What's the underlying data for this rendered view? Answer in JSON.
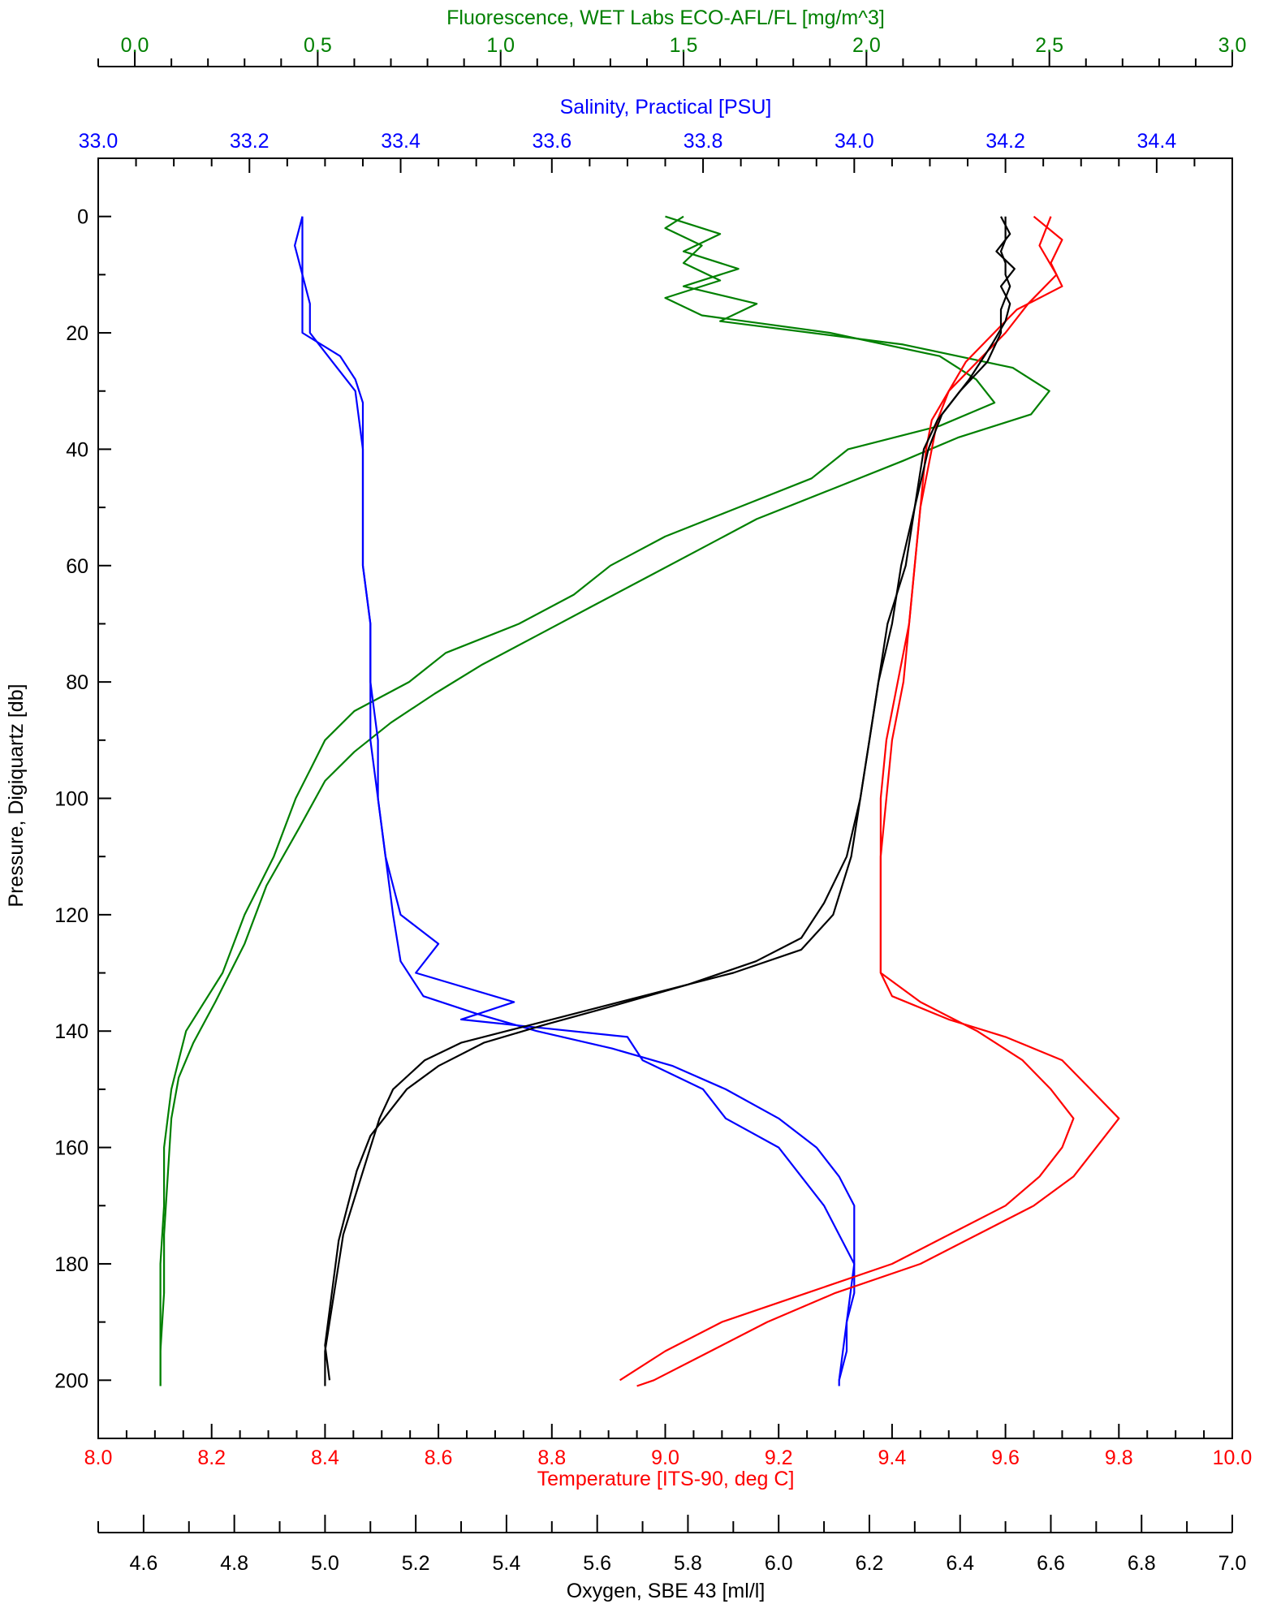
{
  "chart_data": {
    "type": "line",
    "colors": {
      "fluorescence": "#008000",
      "salinity": "#0000ff",
      "temperature": "#ff0000",
      "oxygen": "#000000",
      "frame": "#000000"
    },
    "axes": {
      "pressure": {
        "label": "Pressure, Digiquartz [db]",
        "range": [
          -10,
          210
        ],
        "ticks": [
          0,
          20,
          40,
          60,
          80,
          100,
          120,
          140,
          160,
          180,
          200
        ],
        "tick_labels": [
          "0",
          "20",
          "40",
          "60",
          "80",
          "100",
          "120",
          "140",
          "160",
          "180",
          "200"
        ],
        "reversed": true
      },
      "fluorescence": {
        "label": "Fluorescence, WET Labs ECO-AFL/FL [mg/m^3]",
        "range": [
          -0.1,
          3.0
        ],
        "ticks": [
          0.0,
          0.5,
          1.0,
          1.5,
          2.0,
          2.5,
          3.0
        ],
        "tick_labels": [
          "0.0",
          "0.5",
          "1.0",
          "1.5",
          "2.0",
          "2.5",
          "3.0"
        ],
        "position": "top-outer"
      },
      "salinity": {
        "label": "Salinity, Practical [PSU]",
        "range": [
          33.0,
          34.5
        ],
        "ticks": [
          33.0,
          33.2,
          33.4,
          33.6,
          33.8,
          34.0,
          34.2,
          34.4
        ],
        "tick_labels": [
          "33.0",
          "33.2",
          "33.4",
          "33.6",
          "33.8",
          "34.0",
          "34.2",
          "34.4"
        ],
        "position": "top-inner"
      },
      "temperature": {
        "label": "Temperature [ITS-90, deg C]",
        "range": [
          8.0,
          10.0
        ],
        "ticks": [
          8.0,
          8.2,
          8.4,
          8.6,
          8.8,
          9.0,
          9.2,
          9.4,
          9.6,
          9.8,
          10.0
        ],
        "tick_labels": [
          "8.0",
          "8.2",
          "8.4",
          "8.6",
          "8.8",
          "9.0",
          "9.2",
          "9.4",
          "9.6",
          "9.8",
          "10.0"
        ],
        "position": "bottom-inner"
      },
      "oxygen": {
        "label": "Oxygen, SBE 43 [ml/l]",
        "range": [
          4.5,
          7.0
        ],
        "ticks": [
          4.6,
          4.8,
          5.0,
          5.2,
          5.4,
          5.6,
          5.8,
          6.0,
          6.2,
          6.4,
          6.6,
          6.8,
          7.0
        ],
        "tick_labels": [
          "4.6",
          "4.8",
          "5.0",
          "5.2",
          "5.4",
          "5.6",
          "5.8",
          "6.0",
          "6.2",
          "6.4",
          "6.6",
          "6.8",
          "7.0"
        ],
        "position": "bottom-outer"
      }
    },
    "series": [
      {
        "key": "fluorescence",
        "axis": "fluorescence",
        "profiles": [
          {
            "pressure": [
              0,
              2,
              5,
              8,
              11,
              14,
              17,
              20,
              24,
              28,
              32,
              36,
              40,
              45,
              50,
              55,
              60,
              65,
              70,
              75,
              80,
              85,
              90,
              95,
              100,
              110,
              120,
              130,
              140,
              145,
              150,
              160,
              170,
              180,
              190,
              200,
              201
            ],
            "values": [
              1.5,
              1.45,
              1.55,
              1.5,
              1.6,
              1.45,
              1.55,
              1.9,
              2.2,
              2.3,
              2.35,
              2.2,
              1.95,
              1.85,
              1.65,
              1.45,
              1.3,
              1.2,
              1.05,
              0.85,
              0.75,
              0.6,
              0.52,
              0.48,
              0.44,
              0.38,
              0.3,
              0.24,
              0.14,
              0.12,
              0.1,
              0.08,
              0.08,
              0.07,
              0.07,
              0.07,
              0.07
            ]
          },
          {
            "pressure": [
              0,
              3,
              6,
              9,
              12,
              15,
              18,
              22,
              26,
              30,
              34,
              38,
              42,
              47,
              52,
              57,
              62,
              67,
              72,
              77,
              82,
              87,
              92,
              97,
              105,
              115,
              125,
              135,
              142,
              148,
              155,
              165,
              175,
              185,
              195,
              201
            ],
            "values": [
              1.45,
              1.6,
              1.5,
              1.65,
              1.5,
              1.7,
              1.6,
              2.1,
              2.4,
              2.5,
              2.45,
              2.25,
              2.1,
              1.9,
              1.7,
              1.55,
              1.4,
              1.25,
              1.1,
              0.95,
              0.82,
              0.7,
              0.6,
              0.52,
              0.45,
              0.36,
              0.3,
              0.22,
              0.16,
              0.12,
              0.1,
              0.09,
              0.08,
              0.08,
              0.07,
              0.07
            ]
          }
        ]
      },
      {
        "key": "salinity",
        "axis": "salinity",
        "profiles": [
          {
            "pressure": [
              0,
              4,
              8,
              12,
              16,
              20,
              24,
              28,
              32,
              40,
              50,
              60,
              70,
              80,
              90,
              100,
              110,
              120,
              128,
              134,
              137,
              140,
              143,
              146,
              150,
              155,
              160,
              165,
              170,
              175,
              180,
              185,
              190,
              195,
              200,
              201
            ],
            "values": [
              33.27,
              33.27,
              33.27,
              33.27,
              33.27,
              33.27,
              33.32,
              33.34,
              33.35,
              33.35,
              33.35,
              33.35,
              33.36,
              33.36,
              33.37,
              33.37,
              33.38,
              33.39,
              33.4,
              33.43,
              33.5,
              33.58,
              33.68,
              33.76,
              33.83,
              33.9,
              33.95,
              33.98,
              34.0,
              34.0,
              34.0,
              34.0,
              33.99,
              33.99,
              33.98,
              33.98
            ]
          },
          {
            "pressure": [
              0,
              5,
              10,
              15,
              20,
              25,
              30,
              40,
              50,
              60,
              70,
              80,
              90,
              100,
              110,
              120,
              125,
              130,
              135,
              138,
              141,
              145,
              150,
              155,
              160,
              170,
              180,
              190,
              200
            ],
            "values": [
              33.27,
              33.26,
              33.27,
              33.28,
              33.28,
              33.31,
              33.34,
              33.35,
              33.35,
              33.35,
              33.36,
              33.36,
              33.36,
              33.37,
              33.38,
              33.4,
              33.45,
              33.42,
              33.55,
              33.48,
              33.7,
              33.72,
              33.8,
              33.83,
              33.9,
              33.96,
              34.0,
              33.99,
              33.98
            ]
          }
        ]
      },
      {
        "key": "temperature",
        "axis": "temperature",
        "profiles": [
          {
            "pressure": [
              0,
              4,
              8,
              12,
              16,
              20,
              25,
              30,
              35,
              40,
              50,
              60,
              70,
              80,
              90,
              100,
              110,
              120,
              130,
              134,
              138,
              141,
              145,
              150,
              155,
              160,
              165,
              170,
              175,
              180,
              185,
              190,
              195,
              200,
              201
            ],
            "values": [
              9.65,
              9.7,
              9.68,
              9.7,
              9.62,
              9.58,
              9.53,
              9.5,
              9.47,
              9.46,
              9.45,
              9.44,
              9.43,
              9.42,
              9.4,
              9.39,
              9.38,
              9.38,
              9.38,
              9.4,
              9.5,
              9.6,
              9.7,
              9.75,
              9.8,
              9.76,
              9.72,
              9.65,
              9.55,
              9.45,
              9.3,
              9.18,
              9.08,
              8.98,
              8.95
            ]
          },
          {
            "pressure": [
              0,
              5,
              10,
              15,
              20,
              25,
              30,
              35,
              40,
              50,
              60,
              70,
              80,
              90,
              100,
              110,
              120,
              130,
              135,
              140,
              145,
              150,
              155,
              160,
              165,
              170,
              175,
              180,
              185,
              190,
              195,
              200
            ],
            "values": [
              9.68,
              9.66,
              9.69,
              9.64,
              9.6,
              9.55,
              9.5,
              9.48,
              9.47,
              9.45,
              9.44,
              9.43,
              9.41,
              9.39,
              9.38,
              9.38,
              9.38,
              9.38,
              9.45,
              9.55,
              9.63,
              9.68,
              9.72,
              9.7,
              9.66,
              9.6,
              9.5,
              9.4,
              9.25,
              9.1,
              9.0,
              8.92
            ]
          }
        ]
      },
      {
        "key": "oxygen",
        "axis": "oxygen",
        "profiles": [
          {
            "pressure": [
              0,
              2,
              4,
              6,
              8,
              10,
              12,
              14,
              16,
              20,
              25,
              30,
              35,
              40,
              50,
              60,
              70,
              80,
              90,
              100,
              110,
              120,
              126,
              130,
              134,
              138,
              140,
              142,
              145,
              150,
              155,
              160,
              165,
              170,
              175,
              180,
              185,
              190,
              195,
              200,
              201
            ],
            "values": [
              6.5,
              6.5,
              6.5,
              6.49,
              6.5,
              6.5,
              6.51,
              6.5,
              6.49,
              6.49,
              6.46,
              6.4,
              6.35,
              6.32,
              6.3,
              6.28,
              6.24,
              6.22,
              6.2,
              6.18,
              6.16,
              6.12,
              6.05,
              5.9,
              5.7,
              5.5,
              5.4,
              5.3,
              5.22,
              5.15,
              5.12,
              5.1,
              5.08,
              5.06,
              5.04,
              5.03,
              5.02,
              5.01,
              5.0,
              5.0,
              5.0
            ]
          },
          {
            "pressure": [
              0,
              3,
              6,
              9,
              12,
              15,
              18,
              22,
              28,
              34,
              40,
              50,
              60,
              70,
              80,
              90,
              100,
              110,
              118,
              124,
              128,
              132,
              136,
              139,
              142,
              146,
              150,
              154,
              158,
              164,
              170,
              176,
              182,
              188,
              194,
              200
            ],
            "values": [
              6.49,
              6.51,
              6.48,
              6.52,
              6.49,
              6.51,
              6.5,
              6.47,
              6.42,
              6.36,
              6.33,
              6.3,
              6.27,
              6.25,
              6.22,
              6.2,
              6.18,
              6.15,
              6.1,
              6.05,
              5.95,
              5.8,
              5.62,
              5.48,
              5.35,
              5.25,
              5.18,
              5.14,
              5.1,
              5.07,
              5.05,
              5.03,
              5.02,
              5.01,
              5.0,
              5.01
            ]
          }
        ]
      }
    ]
  }
}
